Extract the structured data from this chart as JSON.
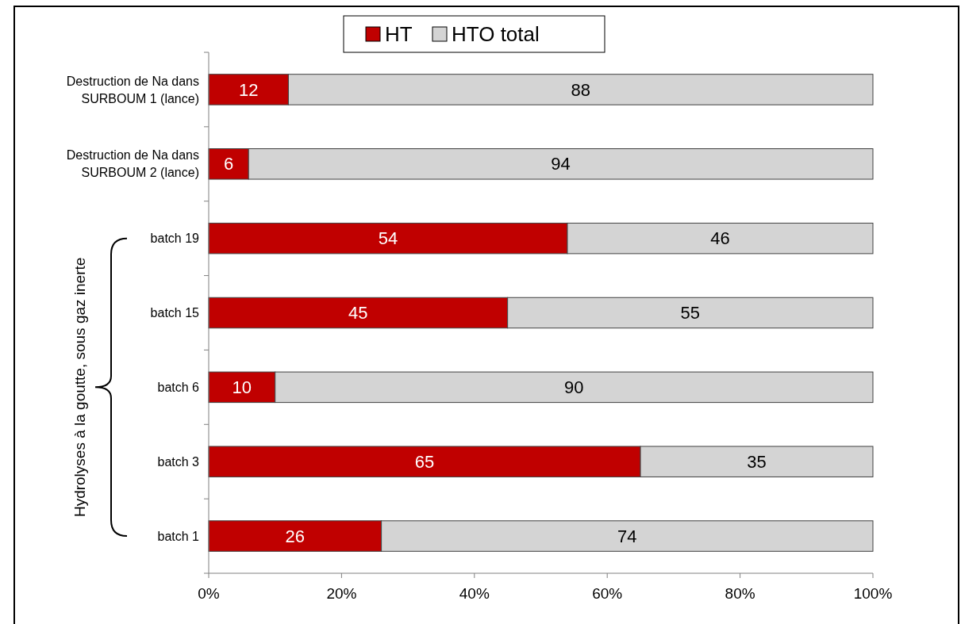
{
  "chart_data": {
    "type": "bar",
    "orientation": "horizontal",
    "stacked": true,
    "categories": [
      "Destruction de Na dans SURBOUM 1 (lance)",
      "Destruction de Na dans SURBOUM 2 (lance)",
      "batch 19",
      "batch 15",
      "batch 6",
      "batch 3",
      "batch 1"
    ],
    "series": [
      {
        "name": "HT",
        "color": "#c00000",
        "values": [
          12,
          6,
          54,
          45,
          10,
          65,
          26
        ]
      },
      {
        "name": "HTO total",
        "color": "#d4d4d4",
        "values": [
          88,
          94,
          46,
          55,
          90,
          35,
          74
        ]
      }
    ],
    "xlim": [
      0,
      100
    ],
    "xticks": [
      {
        "value": 0,
        "label": "0%"
      },
      {
        "value": 20,
        "label": "20%"
      },
      {
        "value": 40,
        "label": "40%"
      },
      {
        "value": 60,
        "label": "60%"
      },
      {
        "value": 80,
        "label": "80%"
      },
      {
        "value": 100,
        "label": "100%"
      }
    ],
    "data_labels": true,
    "legend": "top",
    "grid": false,
    "annotations": [
      "Hydrolyses à la goutte, sous gaz inerte"
    ]
  }
}
